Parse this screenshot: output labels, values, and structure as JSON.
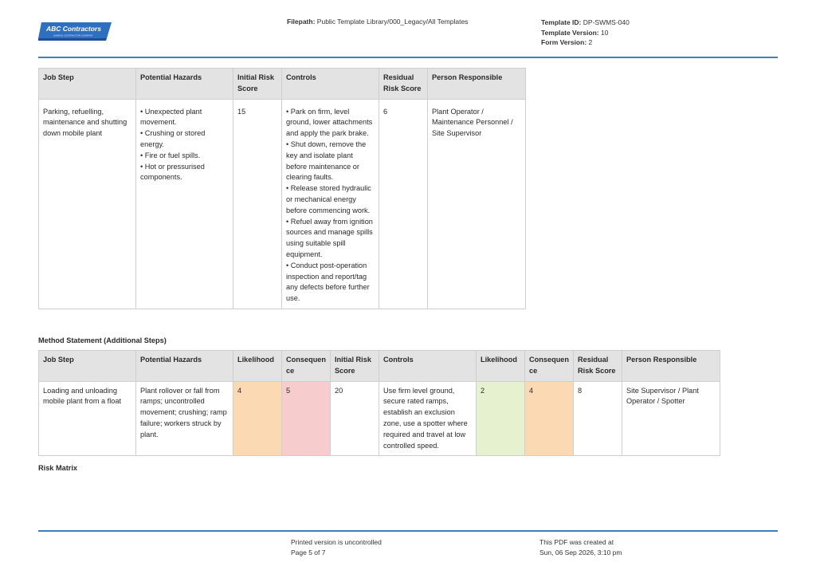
{
  "header": {
    "logo_text": "ABC Contractors",
    "logo_subtext": "SAMPLE CONTRACTOR COMPANY",
    "filepath_label": "Filepath:",
    "filepath_value": "Public Template Library/000_Legacy/All Templates",
    "template_id_label": "Template ID:",
    "template_id_value": "DP-SWMS-040",
    "template_version_label": "Template Version:",
    "template_version_value": "10",
    "form_version_label": "Form Version:",
    "form_version_value": "2"
  },
  "table1": {
    "headers": [
      "Job Step",
      "Potential Hazards",
      "Initial Risk Score",
      "Controls",
      "Residual Risk Score",
      "Person Responsible"
    ],
    "row": {
      "job_step": "Parking, refuelling, maintenance and shutting down mobile plant",
      "hazards": [
        "• Unexpected plant movement.",
        "• Crushing or stored energy.",
        "• Fire or fuel spills.",
        "• Hot or pressurised components."
      ],
      "initial_risk": "15",
      "controls": [
        "• Park on firm, level ground, lower attachments and apply the park brake.",
        "• Shut down, remove the key and isolate plant before maintenance or clearing faults.",
        "• Release stored hydraulic or mechanical energy before commencing work.",
        "• Refuel away from ignition sources and manage spills using suitable spill equipment.",
        "• Conduct post-operation inspection and report/tag any defects before further use."
      ],
      "residual_risk": "6",
      "person_responsible": "Plant Operator / Maintenance Personnel / Site Supervisor"
    }
  },
  "section_method": "Method Statement (Additional Steps)",
  "table2": {
    "headers": [
      "Job Step",
      "Potential Hazards",
      "Likelihood",
      "Consequence",
      "Initial Risk Score",
      "Controls",
      "Likelihood",
      "Consequence",
      "Residual Risk Score",
      "Person Responsible"
    ],
    "row": {
      "job_step": "Loading and unloading mobile plant from a float",
      "hazards": "Plant rollover or fall from ramps; uncontrolled movement; crushing; ramp failure; workers struck by plant.",
      "likelihood_initial": "4",
      "consequence_initial": "5",
      "initial_risk": "20",
      "controls": "Use firm level ground, secure rated ramps, establish an exclusion zone, use a spotter where required and travel at low controlled speed.",
      "likelihood_residual": "2",
      "consequence_residual": "4",
      "residual_risk": "8",
      "person_responsible": "Site Supervisor / Plant Operator / Spotter"
    },
    "cell_colors": {
      "orange": "#fbd9b3",
      "red": "#f6cccc",
      "green": "#e6f1cf"
    }
  },
  "section_matrix": "Risk Matrix",
  "footer": {
    "uncontrolled": "Printed version is uncontrolled",
    "page": "Page 5 of 7",
    "created_label": "This PDF was created at",
    "created_value": "Sun, 06 Sep 2026, 3:10 pm"
  },
  "colors": {
    "rule": "#3a7fbf",
    "header_bg": "#e3e3e3",
    "logo_blue": "#2f6fc0"
  }
}
